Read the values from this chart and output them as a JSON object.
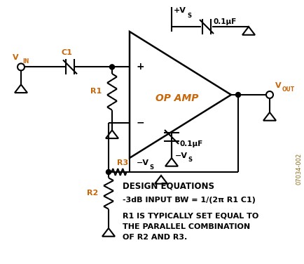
{
  "bg_color": "#ffffff",
  "line_color": "#000000",
  "label_color": "#c8660a",
  "text_color": "#000000",
  "fig_width": 4.35,
  "fig_height": 3.76,
  "dpi": 100,
  "design_eq1": "-3dB INPUT BW = 1/(2π R1 C1)",
  "design_eq2": "R1 IS TYPICALLY SET EQUAL TO\nTHE PARALLEL COMBINATION\nOF R2 AND R3.",
  "design_title": "DESIGN EQUATIONS",
  "label_opamp": "OP AMP",
  "label_c1": "C1",
  "label_r1": "R1",
  "label_r2": "R2",
  "label_r3": "R3",
  "label_cap1": "0.1μF",
  "label_cap2": "0.1μF",
  "watermark": "07034-002"
}
